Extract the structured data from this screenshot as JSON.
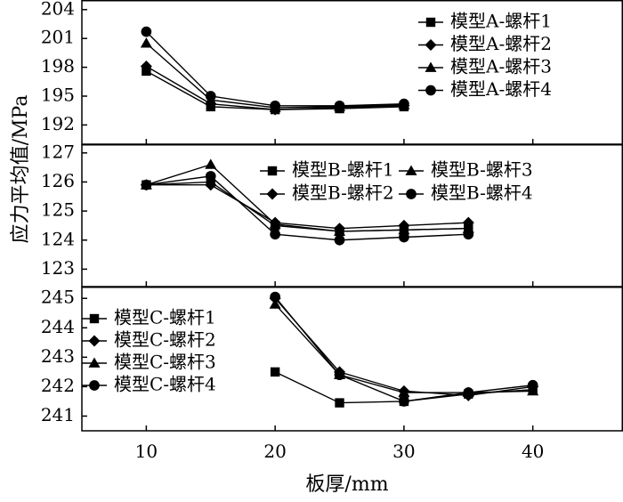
{
  "figure": {
    "ylabel": "应力平均值/MPa",
    "xlabel": "板厚/mm"
  },
  "chart_data": [
    {
      "type": "line",
      "panel": "A",
      "x_ticks": [
        10,
        20,
        30,
        40
      ],
      "xlim": [
        5,
        47
      ],
      "ylim": [
        190,
        205
      ],
      "y_ticks": [
        192,
        195,
        198,
        201,
        204
      ],
      "legend_position": "top-right",
      "legend_columns": 1,
      "series": [
        {
          "name": "模型A-螺杆1",
          "marker": "square",
          "x": [
            10,
            15,
            20,
            25,
            30
          ],
          "values": [
            197.6,
            193.9,
            193.6,
            193.7,
            193.9
          ]
        },
        {
          "name": "模型A-螺杆2",
          "marker": "diamond",
          "x": [
            10,
            15,
            20,
            25,
            30
          ],
          "values": [
            198.1,
            194.2,
            193.6,
            193.8,
            194.0
          ]
        },
        {
          "name": "模型A-螺杆3",
          "marker": "triangle",
          "x": [
            10,
            15,
            20,
            25,
            30
          ],
          "values": [
            200.5,
            194.6,
            193.8,
            193.9,
            194.1
          ]
        },
        {
          "name": "模型A-螺杆4",
          "marker": "circle",
          "x": [
            10,
            15,
            20,
            25,
            30
          ],
          "values": [
            201.7,
            195.0,
            194.0,
            194.0,
            194.2
          ]
        }
      ]
    },
    {
      "type": "line",
      "panel": "B",
      "x_ticks": [
        10,
        20,
        30,
        40
      ],
      "xlim": [
        5,
        47
      ],
      "ylim": [
        122.4,
        127.3
      ],
      "y_ticks": [
        123,
        124,
        125,
        126,
        127
      ],
      "legend_position": "top-right",
      "legend_columns": 2,
      "series": [
        {
          "name": "模型B-螺杆1",
          "marker": "square",
          "x": [
            10,
            15,
            20,
            25,
            30,
            35
          ],
          "values": [
            125.9,
            126.0,
            124.5,
            124.3,
            124.35,
            124.4
          ]
        },
        {
          "name": "模型B-螺杆2",
          "marker": "diamond",
          "x": [
            10,
            15,
            20,
            25,
            30,
            35
          ],
          "values": [
            125.9,
            125.9,
            124.6,
            124.4,
            124.5,
            124.6
          ]
        },
        {
          "name": "模型B-螺杆3",
          "marker": "triangle",
          "x": [
            10,
            15,
            20,
            25,
            30,
            35
          ],
          "values": [
            125.9,
            126.6,
            124.55,
            124.3,
            124.35,
            124.4
          ]
        },
        {
          "name": "模型B-螺杆4",
          "marker": "circle",
          "x": [
            10,
            15,
            20,
            25,
            30,
            35
          ],
          "values": [
            125.9,
            126.2,
            124.2,
            124.0,
            124.1,
            124.2
          ]
        }
      ]
    },
    {
      "type": "line",
      "panel": "C",
      "x_ticks": [
        10,
        20,
        30,
        40
      ],
      "xlim": [
        5,
        47
      ],
      "ylim": [
        240.5,
        245.4
      ],
      "y_ticks": [
        241,
        242,
        243,
        244,
        245
      ],
      "legend_position": "top-left",
      "legend_columns": 1,
      "series": [
        {
          "name": "模型C-螺杆1",
          "marker": "square",
          "x": [
            20,
            25,
            30,
            35,
            40
          ],
          "values": [
            242.5,
            241.45,
            241.5,
            241.75,
            241.9
          ]
        },
        {
          "name": "模型C-螺杆2",
          "marker": "diamond",
          "x": [
            20,
            25,
            30,
            35,
            40
          ],
          "values": [
            245.0,
            242.5,
            241.85,
            241.7,
            242.0
          ]
        },
        {
          "name": "模型C-螺杆3",
          "marker": "triangle",
          "x": [
            20,
            25,
            30,
            35,
            40
          ],
          "values": [
            244.8,
            242.4,
            241.8,
            241.8,
            241.85
          ]
        },
        {
          "name": "模型C-螺杆4",
          "marker": "circle",
          "x": [
            20,
            25,
            30,
            35,
            40
          ],
          "values": [
            245.05,
            242.4,
            241.5,
            241.8,
            242.05
          ]
        }
      ]
    }
  ]
}
